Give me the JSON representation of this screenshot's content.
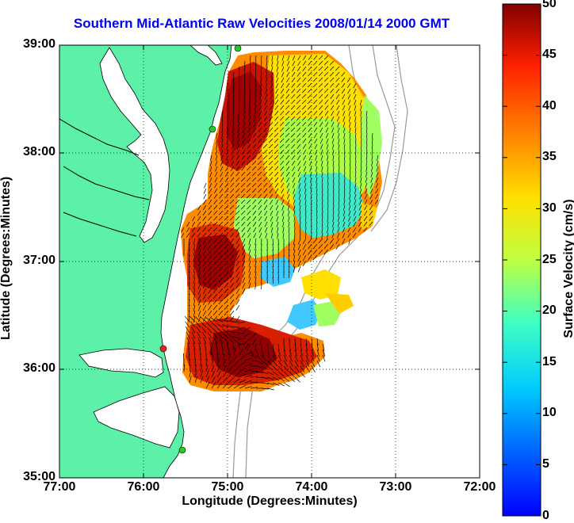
{
  "title": "Southern Mid-Atlantic Raw Velocities 2008/01/14 2000 GMT",
  "axes": {
    "xlabel": "Longitude (Degrees:Minutes)",
    "ylabel": "Latitude (Degrees:Minutes)",
    "x_ticks": [
      "77:00",
      "76:00",
      "75:00",
      "74:00",
      "73:00",
      "72:00"
    ],
    "y_ticks": [
      "39:00",
      "38:00",
      "37:00",
      "36:00",
      "35:00"
    ],
    "x_range": [
      "77:00 W",
      "72:00 W"
    ],
    "y_range": [
      "35:00 N",
      "39:00 N"
    ],
    "grid": "dotted"
  },
  "colorbar": {
    "label": "Surface Velocity (cm/s)",
    "ticks": [
      "50",
      "45",
      "40",
      "35",
      "30",
      "25",
      "20",
      "15",
      "10",
      "5",
      "0"
    ],
    "range": [
      0,
      50
    ],
    "colormap": "jet",
    "placement": "right"
  },
  "colors": {
    "land": "#5cf0a8",
    "water": "#ffffff",
    "title": "#0000ee",
    "station_green": "#22cc22",
    "station_red": "#ee2222",
    "bathymetry": "#999999"
  },
  "stations": [
    {
      "color": "green"
    },
    {
      "color": "green"
    },
    {
      "color": "red"
    },
    {
      "color": "green"
    }
  ]
}
